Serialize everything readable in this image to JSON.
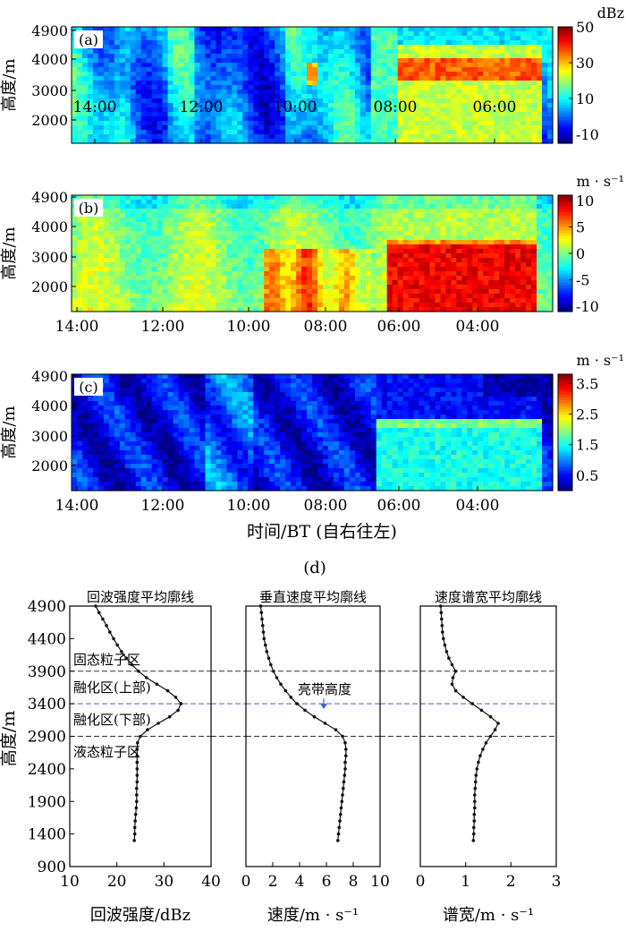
{
  "figure": {
    "top_xlabel": "时间/BT (自右往左)",
    "panel_d_label": "(d)",
    "ylabel": "高度/m"
  },
  "heatmaps": [
    {
      "label": "(a)",
      "time_ticks": [
        "14:00",
        "12:00",
        "10:00",
        "08:00",
        "06:00"
      ],
      "y_ticks": [
        4900,
        4000,
        3000,
        2000
      ],
      "cbar_unit": "dBz",
      "cbar_ticks": [
        50,
        30,
        10,
        -10
      ],
      "vmin": -15,
      "vmax": 50
    },
    {
      "label": "(b)",
      "time_ticks": [
        "14:00",
        "12:00",
        "10:00",
        "08:00",
        "06:00",
        "04:00"
      ],
      "y_ticks": [
        4900,
        4000,
        3000,
        2000
      ],
      "cbar_unit": "m · s⁻¹",
      "cbar_ticks": [
        10,
        5,
        0,
        -5,
        -10
      ],
      "vmin": -11,
      "vmax": 11
    },
    {
      "label": "(c)",
      "time_ticks": [
        "14:00",
        "12:00",
        "10:00",
        "08:00",
        "06:00",
        "04:00"
      ],
      "y_ticks": [
        4900,
        4000,
        3000,
        2000
      ],
      "cbar_unit": "m · s⁻¹",
      "cbar_ticks": [
        3.5,
        2.5,
        1.5,
        0.5
      ],
      "vmin": 0,
      "vmax": 3.8
    }
  ],
  "chart_data": [
    {
      "type": "line",
      "title": "回波强度平均廓线",
      "xlabel": "回波强度/dBz",
      "ylabel": "高度/m",
      "xlim": [
        10,
        40
      ],
      "ylim": [
        900,
        4900
      ],
      "x_ticks": [
        10,
        20,
        30,
        40
      ],
      "y_ticks": [
        900,
        1400,
        1900,
        2400,
        2900,
        3400,
        3900,
        4400,
        4900
      ],
      "annotations": [
        "固态粒子区",
        "融化区(上部)",
        "融化区(下部)",
        "液态粒子区"
      ],
      "series": [
        {
          "x": [
            15.5,
            16.2,
            17.0,
            17.8,
            18.5,
            19.3,
            20.1,
            21.0,
            22.0,
            23.2,
            24.6,
            26.3,
            28.5,
            30.8,
            32.5,
            33.6,
            33.0,
            31.2,
            28.8,
            26.5,
            25.0,
            24.4,
            24.3,
            24.3,
            24.3,
            24.3,
            24.3,
            24.3,
            24.2,
            24.2,
            24.2,
            24.1,
            24.0,
            23.9,
            23.8,
            23.8,
            23.7
          ],
          "y": [
            4900,
            4800,
            4700,
            4600,
            4500,
            4400,
            4300,
            4200,
            4100,
            4000,
            3900,
            3800,
            3700,
            3600,
            3500,
            3400,
            3300,
            3200,
            3100,
            3000,
            2900,
            2800,
            2700,
            2600,
            2500,
            2400,
            2300,
            2200,
            2100,
            2000,
            1900,
            1800,
            1700,
            1600,
            1500,
            1400,
            1300
          ]
        }
      ]
    },
    {
      "type": "line",
      "title": "垂直速度平均廓线",
      "xlabel": "速度/m · s⁻¹",
      "xlim": [
        0,
        10
      ],
      "ylim": [
        900,
        4900
      ],
      "x_ticks": [
        0,
        2,
        4,
        6,
        8,
        10
      ],
      "annotations": [
        "亮带高度"
      ],
      "series": [
        {
          "x": [
            1.1,
            1.15,
            1.2,
            1.25,
            1.3,
            1.35,
            1.45,
            1.55,
            1.7,
            1.85,
            2.05,
            2.3,
            2.6,
            2.95,
            3.35,
            3.8,
            4.4,
            5.1,
            5.9,
            6.7,
            7.2,
            7.4,
            7.45,
            7.45,
            7.4,
            7.4,
            7.35,
            7.3,
            7.25,
            7.2,
            7.15,
            7.1,
            7.05,
            7.0,
            6.95,
            6.9,
            6.85
          ],
          "y": [
            4900,
            4800,
            4700,
            4600,
            4500,
            4400,
            4300,
            4200,
            4100,
            4000,
            3900,
            3800,
            3700,
            3600,
            3500,
            3400,
            3300,
            3200,
            3100,
            3000,
            2900,
            2800,
            2700,
            2600,
            2500,
            2400,
            2300,
            2200,
            2100,
            2000,
            1900,
            1800,
            1700,
            1600,
            1500,
            1400,
            1300
          ]
        }
      ]
    },
    {
      "type": "line",
      "title": "速度谱宽平均廓线",
      "xlabel": "谱宽/m · s⁻¹",
      "xlim": [
        0,
        3
      ],
      "ylim": [
        900,
        4900
      ],
      "x_ticks": [
        0,
        1,
        2,
        3
      ],
      "series": [
        {
          "x": [
            0.45,
            0.46,
            0.47,
            0.48,
            0.49,
            0.51,
            0.54,
            0.58,
            0.63,
            0.7,
            0.78,
            0.72,
            0.7,
            0.78,
            0.95,
            1.15,
            1.35,
            1.55,
            1.72,
            1.65,
            1.55,
            1.45,
            1.38,
            1.32,
            1.28,
            1.25,
            1.23,
            1.22,
            1.21,
            1.2,
            1.2,
            1.2,
            1.19,
            1.19,
            1.18,
            1.18,
            1.17
          ],
          "y": [
            4900,
            4800,
            4700,
            4600,
            4500,
            4400,
            4300,
            4200,
            4100,
            4000,
            3900,
            3800,
            3700,
            3600,
            3500,
            3400,
            3300,
            3200,
            3100,
            3000,
            2900,
            2800,
            2700,
            2600,
            2500,
            2400,
            2300,
            2200,
            2100,
            2000,
            1900,
            1800,
            1700,
            1600,
            1500,
            1400,
            1300
          ]
        }
      ]
    }
  ]
}
